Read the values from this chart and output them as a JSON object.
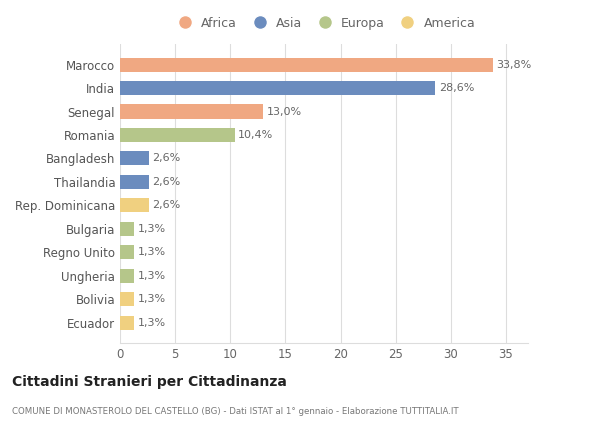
{
  "categories": [
    "Ecuador",
    "Bolivia",
    "Ungheria",
    "Regno Unito",
    "Bulgaria",
    "Rep. Dominicana",
    "Thailandia",
    "Bangladesh",
    "Romania",
    "Senegal",
    "India",
    "Marocco"
  ],
  "values": [
    1.3,
    1.3,
    1.3,
    1.3,
    1.3,
    2.6,
    2.6,
    2.6,
    10.4,
    13.0,
    28.6,
    33.8
  ],
  "labels": [
    "1,3%",
    "1,3%",
    "1,3%",
    "1,3%",
    "1,3%",
    "2,6%",
    "2,6%",
    "2,6%",
    "10,4%",
    "13,0%",
    "28,6%",
    "33,8%"
  ],
  "continents": [
    "America",
    "America",
    "Europa",
    "Europa",
    "Europa",
    "America",
    "Asia",
    "Asia",
    "Europa",
    "Africa",
    "Asia",
    "Africa"
  ],
  "colors": {
    "Africa": "#F0A882",
    "Asia": "#6B8CBE",
    "Europa": "#B5C68A",
    "America": "#F0D080"
  },
  "legend_order": [
    "Africa",
    "Asia",
    "Europa",
    "America"
  ],
  "title": "Cittadini Stranieri per Cittadinanza",
  "subtitle": "COMUNE DI MONASTEROLO DEL CASTELLO (BG) - Dati ISTAT al 1° gennaio - Elaborazione TUTTITALIA.IT",
  "xlim": [
    0,
    37
  ],
  "xticks": [
    0,
    5,
    10,
    15,
    20,
    25,
    30,
    35
  ],
  "background_color": "#ffffff",
  "grid_color": "#dddddd"
}
